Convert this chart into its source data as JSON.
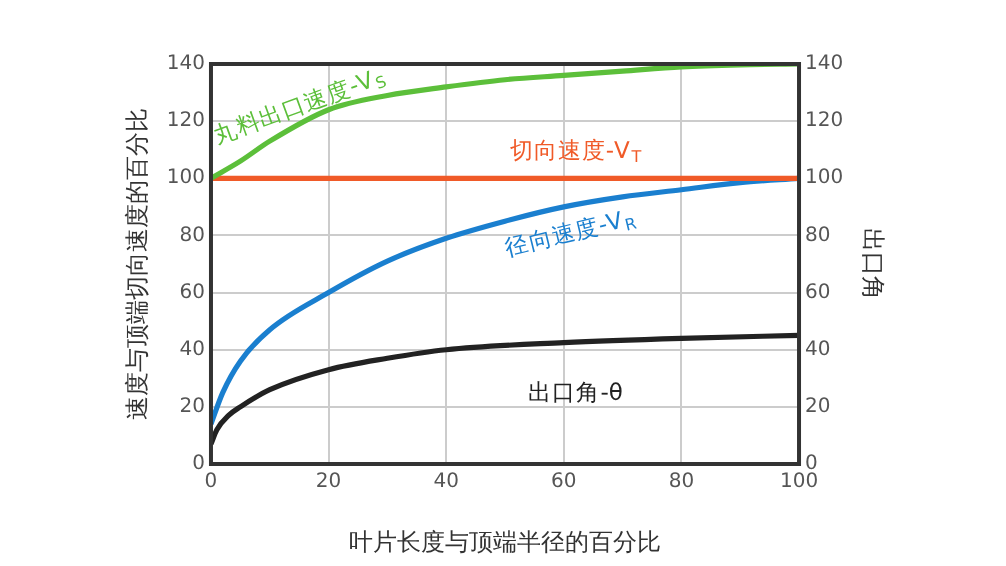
{
  "chart_data": {
    "type": "line",
    "xlabel": "叶片长度与顶端半径的百分比",
    "ylabel": "速度与顶端切向速度的百分比",
    "y2label": "出口角",
    "series": [
      {
        "name": "丸料出口速度-V$_{S}$",
        "color": "#5cbf3a",
        "x": [
          0,
          5,
          10,
          20,
          30,
          40,
          50,
          60,
          70,
          80,
          90,
          100
        ],
        "values": [
          100,
          106,
          113,
          124,
          129,
          132,
          134.5,
          136,
          137.5,
          139,
          139.7,
          140
        ]
      },
      {
        "name": "切向速度-V$_{T}$",
        "color": "#f05a28",
        "x": [
          0,
          100
        ],
        "values": [
          100,
          100
        ]
      },
      {
        "name": "径向速度-V$_{R}$",
        "color": "#1a7fcf",
        "x": [
          0,
          2,
          5,
          10,
          20,
          30,
          40,
          50,
          60,
          70,
          80,
          90,
          100
        ],
        "values": [
          14,
          25,
          36,
          47,
          60,
          71,
          79,
          85,
          90,
          93.5,
          96,
          98.5,
          100
        ]
      },
      {
        "name": "出口角-θ",
        "color": "#222222",
        "axis": "y2",
        "x": [
          0,
          1,
          3,
          5,
          10,
          20,
          30,
          40,
          60,
          80,
          100
        ],
        "values": [
          7,
          12,
          17,
          20,
          26,
          33,
          37,
          40,
          42.5,
          44,
          45
        ]
      }
    ],
    "xlim": [
      0,
      100
    ],
    "xticks": [
      0,
      20,
      40,
      60,
      80,
      100
    ],
    "ylim": [
      0,
      140
    ],
    "yticks": [
      0,
      20,
      40,
      60,
      80,
      100,
      120,
      140
    ],
    "y2lim": [
      0,
      140
    ],
    "y2ticks": [
      0,
      20,
      40,
      60,
      80,
      100,
      120,
      140
    ],
    "grid": true,
    "legend": false,
    "marker": "none",
    "line_style": "solid"
  }
}
